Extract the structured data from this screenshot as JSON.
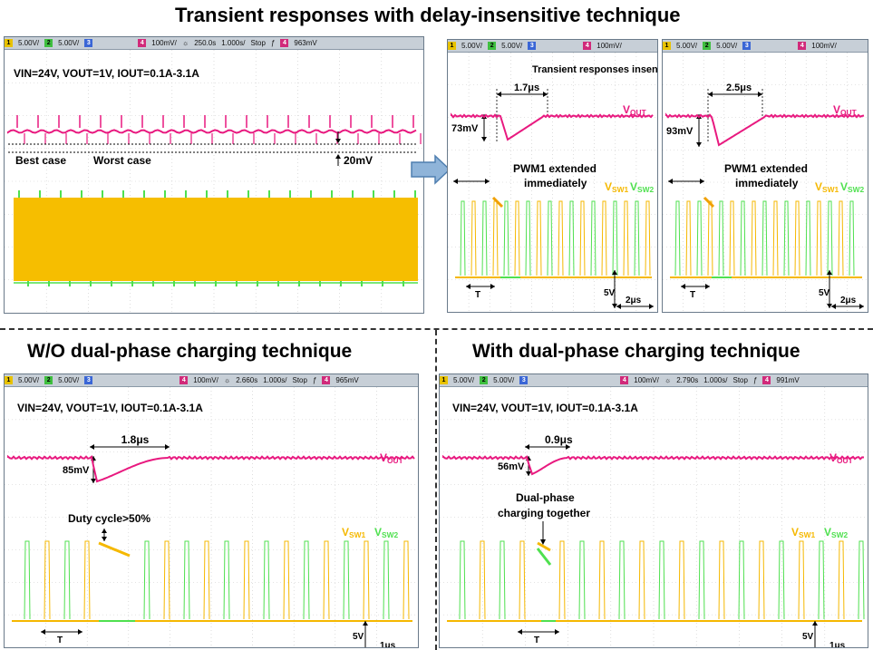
{
  "title": "Transient responses with delay-insensitive technique",
  "bottom_left_title": "W/O dual-phase charging technique",
  "bottom_right_title": "With dual-phase charging technique",
  "colors": {
    "vout": "#e8197f",
    "sw1": "#f5b800",
    "sw2": "#4fe04f",
    "grid": "#c9c9c9"
  },
  "icons": {
    "sun": "brightness-icon",
    "arrow": "right-arrow-icon"
  },
  "panel_a": {
    "status": {
      "c1": "5.00V/",
      "c2": "5.00V/",
      "c4": "100mV/",
      "time": "250.0s",
      "div": "1.000s/",
      "mode": "Stop",
      "level": "963mV"
    },
    "condition": "VIN=24V, VOUT=1V, IOUT=0.1A-3.1A",
    "best": "Best case",
    "worst": "Worst case",
    "delta": "20mV"
  },
  "panel_b": {
    "status": {
      "c1": "5.00V/",
      "c2": "5.00V/",
      "c4": "100mV/"
    },
    "caption": "Transient responses insensitive to delay",
    "time_label": "1.7μs",
    "dip": "73mV",
    "vout": "VOUT",
    "pwm": "PWM1 extended",
    "pwm2": "immediately",
    "sw1": "VSW1",
    "sw2": "VSW2",
    "t": "T",
    "volt": "5V",
    "time_div": "2μs"
  },
  "panel_c": {
    "status": {
      "c1": "5.00V/",
      "c2": "5.00V/",
      "c4": "100mV/"
    },
    "time_label": "2.5μs",
    "dip": "93mV",
    "vout": "VOUT",
    "pwm": "PWM1 extended",
    "pwm2": "immediately",
    "sw1": "VSW1",
    "sw2": "VSW2",
    "t": "T",
    "volt": "5V",
    "time_div": "2μs"
  },
  "panel_d": {
    "status": {
      "c1": "5.00V/",
      "c2": "5.00V/",
      "c4": "100mV/",
      "time": "2.660s",
      "div": "1.000s/",
      "mode": "Stop",
      "level": "965mV"
    },
    "condition": "VIN=24V, VOUT=1V, IOUT=0.1A-3.1A",
    "time_label": "1.8μs",
    "dip": "85mV",
    "vout": "VOUT",
    "note": "Duty cycle>50%",
    "sw1": "VSW1",
    "sw2": "VSW2",
    "t": "T",
    "volt": "5V",
    "time_div": "1μs"
  },
  "panel_e": {
    "status": {
      "c1": "5.00V/",
      "c2": "5.00V/",
      "c4": "100mV/",
      "time": "2.790s",
      "div": "1.000s/",
      "mode": "Stop",
      "level": "991mV"
    },
    "condition": "VIN=24V, VOUT=1V, IOUT=0.1A-3.1A",
    "time_label": "0.9μs",
    "dip": "56mV",
    "vout": "VOUT",
    "note1": "Dual-phase",
    "note2": "charging together",
    "sw1": "VSW1",
    "sw2": "VSW2",
    "t": "T",
    "volt": "5V",
    "time_div": "1μs"
  }
}
